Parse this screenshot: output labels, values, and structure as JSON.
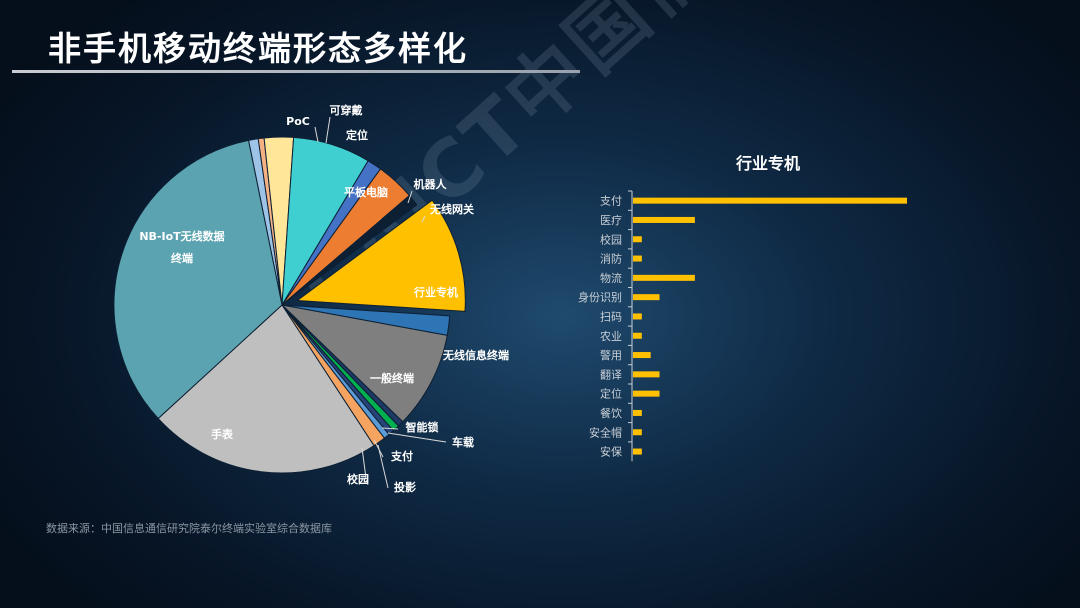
{
  "page": {
    "title": "非手机移动终端形态多样化",
    "source": "数据来源：中国信息通信研究院泰尔终端实验室综合数据库",
    "watermark": "CAICT中国信通院"
  },
  "colors": {
    "accent_yellow": "#ffc000",
    "background": "#0b1e33"
  },
  "chart_data": [
    {
      "type": "pie",
      "slices": [
        {
          "name": "PoC",
          "value": 1,
          "color": "#9dc3e6"
        },
        {
          "name": "可穿戴",
          "value": 0.6,
          "color": "#f4b183"
        },
        {
          "name": "定位",
          "value": 3,
          "color": "#ffe699"
        },
        {
          "name": "平板电脑",
          "value": 8,
          "color": "#3fcfd0"
        },
        {
          "name": "机器人",
          "value": 1.5,
          "color": "#4472c4"
        },
        {
          "name": "无线网关",
          "value": 4,
          "color": "#ed7d31"
        },
        {
          "name": "",
          "value": 1.2,
          "color": "#0d1f33"
        },
        {
          "name": "行业专机",
          "value": 12,
          "color": "#ffc000"
        },
        {
          "name": "无线信息终端",
          "value": 2,
          "color": "#2e75b6"
        },
        {
          "name": "一般终端",
          "value": 10,
          "color": "#7f7f7f"
        },
        {
          "name": "车载",
          "value": 0.6,
          "color": "#203864"
        },
        {
          "name": "智能锁",
          "value": 0.7,
          "color": "#00b050"
        },
        {
          "name": "支付",
          "value": 0.6,
          "color": "#264478"
        },
        {
          "name": "投影",
          "value": 0.6,
          "color": "#5b9bd5"
        },
        {
          "name": "校园",
          "value": 1.3,
          "color": "#f4a460"
        },
        {
          "name": "手表",
          "value": 24,
          "color": "#bfbfbf"
        },
        {
          "name": "NB-IoT无线数据终端",
          "value": 36,
          "color": "#5ba3b0"
        }
      ]
    },
    {
      "type": "bar",
      "orientation": "horizontal",
      "title": "行业专机",
      "categories": [
        "支付",
        "医疗",
        "校园",
        "消防",
        "物流",
        "身份识别",
        "扫码",
        "农业",
        "警用",
        "翻译",
        "定位",
        "餐饮",
        "安全帽",
        "安保"
      ],
      "values": [
        31,
        7,
        1,
        1,
        7,
        3,
        1,
        1,
        2,
        3,
        3,
        1,
        1,
        1
      ],
      "color": "#ffc000"
    }
  ]
}
